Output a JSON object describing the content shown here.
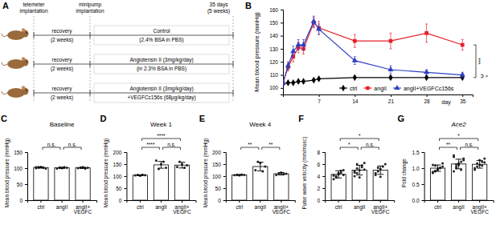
{
  "diagram": {
    "panel": "A",
    "header": {
      "start": [
        "telemeter",
        "implantation"
      ],
      "mid": [
        "minipump",
        "implantation"
      ],
      "end": [
        "35 days",
        "(5 weeks)"
      ]
    },
    "rows": [
      {
        "recovery": [
          "recovery",
          "(2 weeks)"
        ],
        "treatment": [
          "Control",
          "(2.4% BSA in PBS)"
        ]
      },
      {
        "recovery": [
          "recovery",
          "(2 weeks)"
        ],
        "treatment": [
          "Angiotensin II (3mg/kg/day)",
          "(in 2.3% BSA in PBS)"
        ]
      },
      {
        "recovery": [
          "recovery",
          "(2 weeks)"
        ],
        "treatment": [
          "Angiotensin II (3mg/kg/day)",
          "+VEGFCc156s (68μg/kg/day)"
        ]
      }
    ]
  },
  "chart_data": [
    {
      "panel": "B",
      "type": "line",
      "y_label": "Mean blood pressure (mmHg)",
      "x_label": "day",
      "x": [
        0,
        1,
        2,
        3,
        4,
        6,
        7,
        14,
        21,
        28,
        35
      ],
      "xlim": [
        0,
        37
      ],
      "xticks": [
        7,
        14,
        21,
        28,
        35
      ],
      "ylim": [
        95,
        160
      ],
      "yticks": [
        100,
        110,
        120,
        130,
        140,
        150,
        160
      ],
      "legend": "lower right",
      "series": [
        {
          "name": "ctrl",
          "color": "#000000",
          "marker": "diamond",
          "line_style": "solid",
          "values": [
            103,
            104,
            104,
            105,
            105,
            106,
            107,
            108,
            108,
            108,
            108
          ],
          "errors": [
            1,
            1,
            1,
            1,
            1,
            1,
            1,
            1,
            1,
            1,
            1
          ]
        },
        {
          "name": "angII",
          "color": "#e5202a",
          "marker": "square",
          "line_style": "solid",
          "values": [
            104,
            116,
            124,
            131,
            130,
            150,
            146,
            136,
            136,
            142,
            133
          ],
          "errors": [
            2,
            3,
            4,
            4,
            4,
            4,
            5,
            5,
            6,
            7,
            4
          ]
        },
        {
          "name": "angII+VEGFCc156s",
          "color": "#2f3fbf",
          "marker": "triangle",
          "line_style": "solid",
          "values": [
            104,
            117,
            128,
            133,
            133,
            151,
            145,
            121,
            114,
            112,
            110
          ],
          "errors": [
            2,
            3,
            4,
            4,
            4,
            4,
            4,
            3,
            3,
            2,
            2
          ]
        }
      ],
      "annotations": [
        {
          "text": "***",
          "series": [
            "ctrl",
            "angII"
          ]
        },
        {
          "text": "*",
          "series": [
            "ctrl",
            "angII+VEGFCc156s"
          ]
        }
      ]
    },
    {
      "panel": "C",
      "type": "bar",
      "title": "Baseline",
      "y_label": "Mean blood pressure (mmHg)",
      "categories": [
        "ctrl",
        "angII",
        "angII+VEGFC"
      ],
      "values": [
        102,
        101,
        101
      ],
      "errors": [
        2,
        2,
        2
      ],
      "points": [
        [
          100,
          103,
          104,
          101,
          99,
          103,
          102
        ],
        [
          99,
          102,
          100,
          103,
          101
        ],
        [
          100,
          102,
          103,
          99,
          101
        ]
      ],
      "color": "#ffffff",
      "ylim": [
        0,
        150
      ],
      "yticks": [
        0,
        50,
        100,
        150
      ],
      "annotations": [
        {
          "text": "n.s.",
          "pair": [
            "ctrl",
            "angII"
          ]
        },
        {
          "text": "n.s.",
          "pair": [
            "angII",
            "angII+VEGFC"
          ]
        }
      ]
    },
    {
      "panel": "D",
      "type": "bar",
      "title": "Week 1",
      "y_label": "Mean blood pressure (mmHg)",
      "categories": [
        "ctrl",
        "angII",
        "angII+VEGFC"
      ],
      "values": [
        104,
        147,
        146
      ],
      "errors": [
        2,
        14,
        12
      ],
      "points": [
        [
          103,
          105,
          102,
          106,
          104
        ],
        [
          165,
          130,
          150,
          160,
          135
        ],
        [
          138,
          160,
          150,
          135,
          145
        ]
      ],
      "color": "#ffffff",
      "ylim": [
        0,
        200
      ],
      "yticks": [
        0,
        50,
        100,
        150,
        200
      ],
      "annotations": [
        {
          "text": "****",
          "pair": [
            "ctrl",
            "angII+VEGFC"
          ]
        },
        {
          "text": "****",
          "pair": [
            "ctrl",
            "angII"
          ]
        },
        {
          "text": "n.s.",
          "pair": [
            "angII",
            "angII+VEGFC"
          ]
        }
      ]
    },
    {
      "panel": "E",
      "type": "bar",
      "title": "Week 4",
      "y_label": "Mean blood pressure (mmHg)",
      "categories": [
        "ctrl",
        "angII",
        "angII+VEGFC"
      ],
      "values": [
        105,
        140,
        110
      ],
      "errors": [
        2,
        18,
        5
      ],
      "points": [
        [
          104,
          106,
          103,
          107,
          105
        ],
        [
          125,
          160,
          155,
          120,
          140
        ],
        [
          105,
          112,
          115,
          108,
          110
        ]
      ],
      "color": "#ffffff",
      "ylim": [
        0,
        200
      ],
      "yticks": [
        0,
        50,
        100,
        150,
        200
      ],
      "annotations": [
        {
          "text": "**",
          "pair": [
            "ctrl",
            "angII"
          ]
        },
        {
          "text": "**",
          "pair": [
            "angII",
            "angII+VEGFC"
          ]
        }
      ]
    },
    {
      "panel": "F",
      "type": "bar",
      "y_label": "Pulse wave velocity (mm/msec)",
      "categories": [
        "ctrl",
        "angII",
        "angII+VEGFC"
      ],
      "values": [
        4.3,
        5.0,
        5.0
      ],
      "errors": [
        0.6,
        0.8,
        0.7
      ],
      "points": [
        [
          3.5,
          4.0,
          4.3,
          4.6,
          5.0,
          4.1,
          3.8,
          4.5,
          4.9,
          4.2
        ],
        [
          4.0,
          4.5,
          5.0,
          5.5,
          6.2,
          4.8,
          5.3,
          3.8,
          5.8,
          5.1,
          4.6,
          6.0
        ],
        [
          4.2,
          4.8,
          5.2,
          5.6,
          6.0,
          4.5,
          5.4,
          3.9
        ]
      ],
      "color": "#ffffff",
      "ylim": [
        0,
        8
      ],
      "yticks": [
        0,
        2,
        4,
        6,
        8
      ],
      "annotations": [
        {
          "text": "*",
          "pair": [
            "ctrl",
            "angII+VEGFC"
          ]
        },
        {
          "text": "*",
          "pair": [
            "ctrl",
            "angII"
          ]
        },
        {
          "text": "n.s.",
          "pair": [
            "angII",
            "angII+VEGFC"
          ]
        }
      ]
    },
    {
      "panel": "G",
      "type": "bar",
      "title": "Ace2",
      "y_label": "Fold change",
      "categories": [
        "ctrl",
        "angII",
        "angII+VEGFC"
      ],
      "values": [
        1.0,
        1.13,
        1.12
      ],
      "errors": [
        0.1,
        0.15,
        0.12
      ],
      "points": [
        [
          0.85,
          0.9,
          0.95,
          1.0,
          1.05,
          1.1,
          0.92,
          0.98,
          1.02,
          1.15,
          0.88,
          1.08
        ],
        [
          0.9,
          1.0,
          1.1,
          1.2,
          1.3,
          1.35,
          1.05,
          1.15,
          0.95,
          1.25,
          1.4,
          1.12
        ],
        [
          0.95,
          1.05,
          1.1,
          1.2,
          1.3,
          1.0,
          1.15,
          1.25,
          1.08,
          1.18
        ]
      ],
      "color": "#ffffff",
      "ylim": [
        0,
        1.5
      ],
      "yticks": [
        {
          "value": 0,
          "label": "0.0"
        },
        0.5,
        {
          "value": 1,
          "label": "1.0"
        },
        {
          "value": 1.5,
          "label": "1.5"
        }
      ],
      "annotations": [
        {
          "text": "*",
          "pair": [
            "ctrl",
            "angII+VEGFC"
          ]
        },
        {
          "text": "**",
          "pair": [
            "ctrl",
            "angII"
          ]
        },
        {
          "text": "n.s.",
          "pair": [
            "angII",
            "angII+VEGFC"
          ]
        }
      ]
    }
  ]
}
